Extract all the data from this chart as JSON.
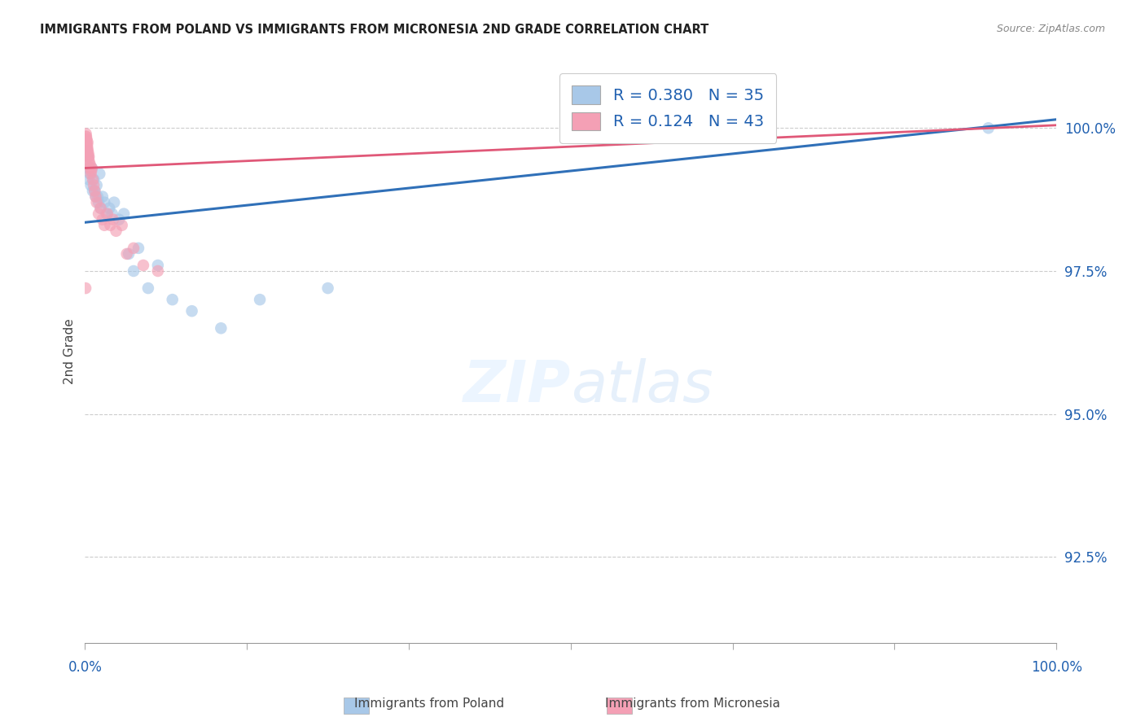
{
  "title": "IMMIGRANTS FROM POLAND VS IMMIGRANTS FROM MICRONESIA 2ND GRADE CORRELATION CHART",
  "source": "Source: ZipAtlas.com",
  "ylabel": "2nd Grade",
  "y_ticks": [
    92.5,
    95.0,
    97.5,
    100.0
  ],
  "y_tick_labels": [
    "92.5%",
    "95.0%",
    "97.5%",
    "100.0%"
  ],
  "xlim": [
    0.0,
    100.0
  ],
  "ylim": [
    91.0,
    101.2
  ],
  "poland_color": "#a8c8e8",
  "micronesia_color": "#f4a0b5",
  "poland_line_color": "#3070b8",
  "micronesia_line_color": "#e05878",
  "poland_R": 0.38,
  "poland_N": 35,
  "micronesia_R": 0.124,
  "micronesia_N": 43,
  "legend_label_poland": "Immigrants from Poland",
  "legend_label_micronesia": "Immigrants from Micronesia",
  "poland_x": [
    0.15,
    0.2,
    0.3,
    0.4,
    0.5,
    0.6,
    0.7,
    0.8,
    0.9,
    1.0,
    1.1,
    1.2,
    1.3,
    1.4,
    1.5,
    1.6,
    1.8,
    2.0,
    2.2,
    2.5,
    2.8,
    3.0,
    3.5,
    4.0,
    4.5,
    5.0,
    5.5,
    6.5,
    7.5,
    9.0,
    11.0,
    14.0,
    18.0,
    25.0,
    93.0
  ],
  "poland_y": [
    99.6,
    99.3,
    99.5,
    99.1,
    99.2,
    99.0,
    99.3,
    98.9,
    99.1,
    98.9,
    98.8,
    99.0,
    98.8,
    98.7,
    99.2,
    98.6,
    98.8,
    98.7,
    98.5,
    98.6,
    98.5,
    98.7,
    98.4,
    98.5,
    97.8,
    97.5,
    97.9,
    97.2,
    97.6,
    97.0,
    96.8,
    96.5,
    97.0,
    97.2,
    100.0
  ],
  "micronesia_x": [
    0.08,
    0.1,
    0.12,
    0.13,
    0.14,
    0.15,
    0.17,
    0.18,
    0.2,
    0.22,
    0.23,
    0.25,
    0.27,
    0.3,
    0.32,
    0.35,
    0.38,
    0.4,
    0.45,
    0.5,
    0.55,
    0.6,
    0.65,
    0.7,
    0.8,
    0.9,
    1.0,
    1.1,
    1.2,
    1.4,
    1.6,
    1.8,
    2.0,
    2.3,
    2.6,
    2.9,
    3.2,
    3.8,
    4.3,
    5.0,
    6.0,
    7.5,
    0.06
  ],
  "micronesia_y": [
    99.85,
    99.9,
    99.8,
    99.85,
    99.75,
    99.7,
    99.75,
    99.8,
    99.65,
    99.6,
    99.7,
    99.65,
    99.75,
    99.6,
    99.5,
    99.55,
    99.45,
    99.5,
    99.4,
    99.3,
    99.35,
    99.2,
    99.25,
    99.3,
    99.1,
    99.0,
    98.9,
    98.8,
    98.7,
    98.5,
    98.6,
    98.4,
    98.3,
    98.5,
    98.3,
    98.4,
    98.2,
    98.3,
    97.8,
    97.9,
    97.6,
    97.5,
    97.2
  ],
  "watermark_zip": "ZIP",
  "watermark_atlas": "atlas"
}
